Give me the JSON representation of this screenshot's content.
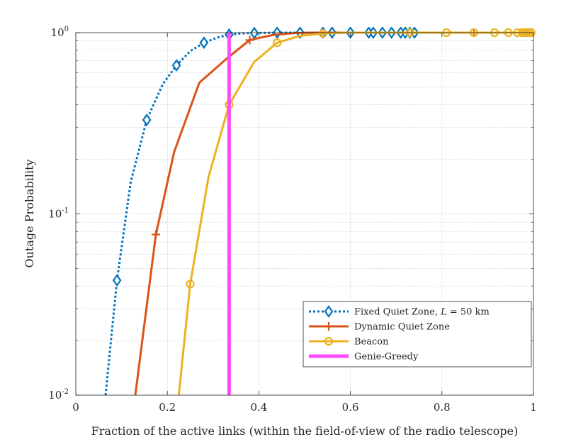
{
  "chart_data": {
    "type": "line",
    "xlabel": "Fraction of the active links (within the field-of-view of the radio telescope)",
    "ylabel": "Outage Probability",
    "xlim": [
      0,
      1
    ],
    "ylim": [
      0.01,
      1
    ],
    "yscale": "log",
    "grid": true,
    "legend_position": "lower-right",
    "x_ticks": [
      {
        "value": 0,
        "label": "0"
      },
      {
        "value": 0.2,
        "label": "0.2"
      },
      {
        "value": 0.4,
        "label": "0.4"
      },
      {
        "value": 0.6,
        "label": "0.6"
      },
      {
        "value": 0.8,
        "label": "0.8"
      },
      {
        "value": 1,
        "label": "1"
      }
    ],
    "y_ticks": [
      {
        "value": 0.01,
        "base": "10",
        "exp": "-2"
      },
      {
        "value": 0.1,
        "base": "10",
        "exp": "-1"
      },
      {
        "value": 1,
        "base": "10",
        "exp": "0"
      }
    ],
    "series": [
      {
        "name": "Fixed Quiet Zone, L = 50 km",
        "legend_prefix": "Fixed Quiet Zone, ",
        "legend_var": "L",
        "legend_suffix": " = 50 km",
        "color": "#0072BD",
        "style": "dotted",
        "marker": "diamond",
        "x": [
          0.065,
          0.09,
          0.12,
          0.155,
          0.19,
          0.22,
          0.25,
          0.28,
          0.31,
          0.335,
          0.36,
          0.39,
          0.44,
          0.49,
          0.54,
          0.56,
          0.6,
          0.64,
          0.65,
          0.67,
          0.69,
          0.71,
          0.72,
          0.73,
          0.74
        ],
        "y": [
          0.01,
          0.043,
          0.15,
          0.33,
          0.52,
          0.66,
          0.79,
          0.88,
          0.94,
          0.975,
          0.99,
          0.995,
          1.0,
          1.0,
          1.0,
          1.0,
          1.0,
          1.0,
          1.0,
          1.0,
          1.0,
          1.0,
          1.0,
          1.0,
          1.0
        ],
        "marker_indices": [
          1,
          3,
          5,
          7,
          9,
          11,
          12,
          13,
          14,
          15,
          16,
          17,
          18,
          19,
          20,
          21,
          22,
          23,
          24
        ]
      },
      {
        "name": "Dynamic Quiet Zone",
        "color": "#D95319",
        "style": "solid",
        "marker": "plus",
        "x": [
          0.13,
          0.175,
          0.215,
          0.27,
          0.33,
          0.38,
          0.43,
          0.48,
          0.52,
          0.56,
          0.62,
          0.72,
          0.87,
          0.99
        ],
        "y": [
          0.01,
          0.077,
          0.22,
          0.53,
          0.72,
          0.91,
          0.97,
          0.995,
          1.0,
          1.0,
          1.0,
          1.0,
          1.0,
          1.0
        ],
        "marker_indices": [
          1,
          5,
          12
        ]
      },
      {
        "name": "Beacon",
        "color": "#EDB120",
        "style": "solid",
        "marker": "circle",
        "x": [
          0.225,
          0.25,
          0.29,
          0.335,
          0.39,
          0.44,
          0.49,
          0.54,
          0.59,
          0.64,
          0.73,
          0.81,
          0.87,
          0.915,
          0.945,
          0.965,
          0.975,
          0.98,
          0.985,
          0.99,
          0.995
        ],
        "y": [
          0.01,
          0.041,
          0.16,
          0.4,
          0.69,
          0.88,
          0.96,
          0.99,
          1.0,
          1.0,
          1.0,
          1.0,
          1.0,
          1.0,
          1.0,
          1.0,
          1.0,
          1.0,
          1.0,
          1.0,
          1.0
        ],
        "marker_indices": [
          1,
          3,
          5,
          7,
          10,
          11,
          12,
          13,
          14,
          15,
          16,
          17,
          18,
          19,
          20
        ]
      },
      {
        "name": "Genie-Greedy",
        "color": "#FF4BFF",
        "style": "solid",
        "marker": "none",
        "x": [
          0.335,
          0.335
        ],
        "y": [
          0.01,
          1.0
        ],
        "marker_indices": []
      }
    ]
  }
}
